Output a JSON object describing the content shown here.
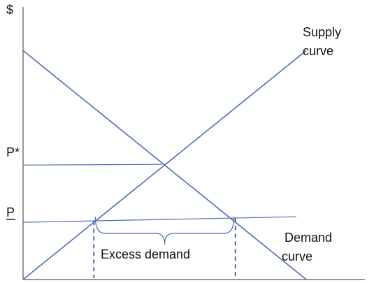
{
  "chart_data": {
    "type": "line",
    "title": "",
    "ylabel": "$",
    "xlabel": "",
    "xlim": [
      0,
      10
    ],
    "ylim": [
      0,
      10
    ],
    "grid": false,
    "series": [
      {
        "name": "Supply curve",
        "label_line1": "Supply",
        "label_line2": "curve",
        "x": [
          0,
          10
        ],
        "y": [
          0,
          9.1
        ]
      },
      {
        "name": "Demand curve",
        "label_line1": "Demand",
        "label_line2": "curve",
        "x": [
          0,
          10
        ],
        "y": [
          9.1,
          0
        ]
      }
    ],
    "price_lines": [
      {
        "name": "P*",
        "y": 4.55
      },
      {
        "name": "P",
        "y": 2.3
      }
    ],
    "excess_demand": {
      "label": "Excess demand",
      "quantity_supplied": 2.5,
      "quantity_demanded": 7.5
    },
    "colors": {
      "line": "#4a6fb3",
      "axis": "#555555",
      "text": "#111111"
    }
  }
}
